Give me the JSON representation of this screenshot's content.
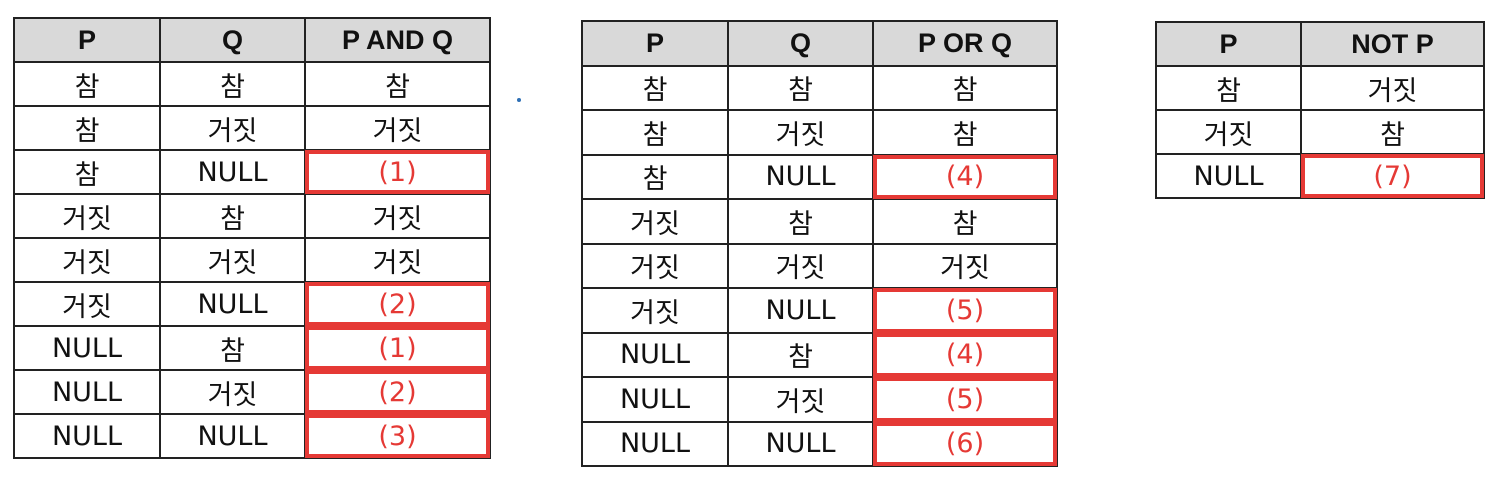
{
  "and_table": {
    "headers": [
      "P",
      "Q",
      "P AND Q"
    ],
    "rows": [
      [
        "참",
        "참",
        "참"
      ],
      [
        "참",
        "거짓",
        "거짓"
      ],
      [
        "참",
        "NULL",
        "(1)"
      ],
      [
        "거짓",
        "참",
        "거짓"
      ],
      [
        "거짓",
        "거짓",
        "거짓"
      ],
      [
        "거짓",
        "NULL",
        "(2)"
      ],
      [
        "NULL",
        "참",
        "(1)"
      ],
      [
        "NULL",
        "거짓",
        "(2)"
      ],
      [
        "NULL",
        "NULL",
        "(3)"
      ]
    ]
  },
  "or_table": {
    "headers": [
      "P",
      "Q",
      "P OR Q"
    ],
    "rows": [
      [
        "참",
        "참",
        "참"
      ],
      [
        "참",
        "거짓",
        "참"
      ],
      [
        "참",
        "NULL",
        "(4)"
      ],
      [
        "거짓",
        "참",
        "참"
      ],
      [
        "거짓",
        "거짓",
        "거짓"
      ],
      [
        "거짓",
        "NULL",
        "(5)"
      ],
      [
        "NULL",
        "참",
        "(4)"
      ],
      [
        "NULL",
        "거짓",
        "(5)"
      ],
      [
        "NULL",
        "NULL",
        "(6)"
      ]
    ]
  },
  "not_table": {
    "headers": [
      "P",
      "NOT P"
    ],
    "rows": [
      [
        "참",
        "거짓"
      ],
      [
        "거짓",
        "참"
      ],
      [
        "NULL",
        "(7)"
      ]
    ]
  },
  "colors": {
    "highlight": "#e53935",
    "header_bg": "#d9d9d9",
    "border": "#222222"
  }
}
